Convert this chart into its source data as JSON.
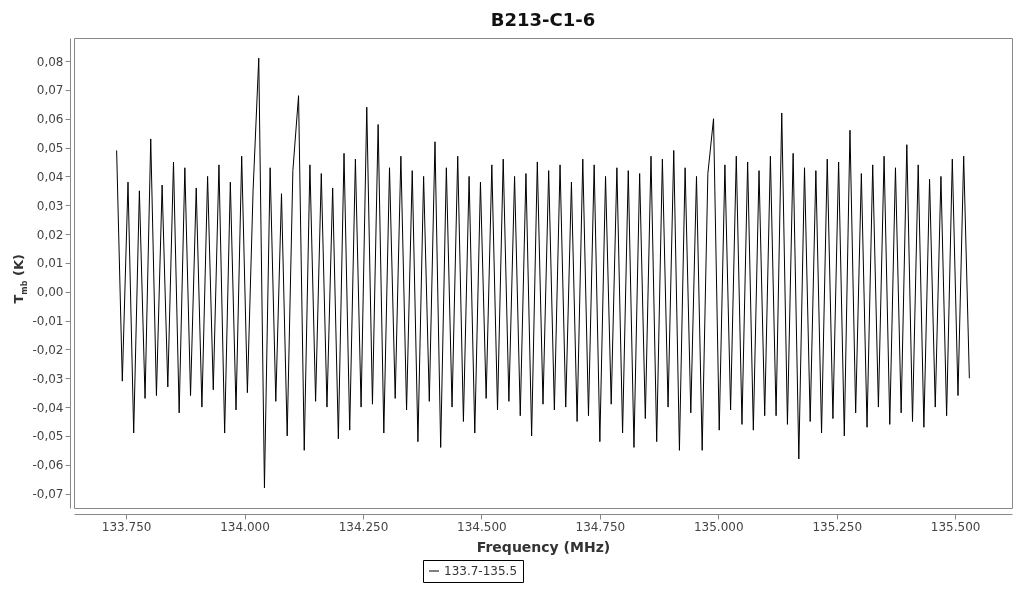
{
  "chart_data": {
    "type": "line",
    "title": "B213-C1-6",
    "xlabel": "Frequency (MHz)",
    "ylabel": "T$_{mb}$ (K)",
    "xlim": [
      133640,
      135620
    ],
    "ylim": [
      -0.075,
      0.088
    ],
    "xticks": [
      {
        "value": 133750,
        "label": "133.750"
      },
      {
        "value": 134000,
        "label": "134.000"
      },
      {
        "value": 134250,
        "label": "134.250"
      },
      {
        "value": 134500,
        "label": "134.500"
      },
      {
        "value": 134750,
        "label": "134.750"
      },
      {
        "value": 135000,
        "label": "135.000"
      },
      {
        "value": 135250,
        "label": "135.250"
      },
      {
        "value": 135500,
        "label": "135.500"
      }
    ],
    "yticks": [
      {
        "value": 0.08,
        "label": "0,08"
      },
      {
        "value": 0.07,
        "label": "0,07"
      },
      {
        "value": 0.06,
        "label": "0,06"
      },
      {
        "value": 0.05,
        "label": "0,05"
      },
      {
        "value": 0.04,
        "label": "0,04"
      },
      {
        "value": 0.03,
        "label": "0,03"
      },
      {
        "value": 0.02,
        "label": "0,02"
      },
      {
        "value": 0.01,
        "label": "0,01"
      },
      {
        "value": 0,
        "label": "0,00"
      },
      {
        "value": -0.01,
        "label": "-0,01"
      },
      {
        "value": -0.02,
        "label": "-0,02"
      },
      {
        "value": -0.03,
        "label": "-0,03"
      },
      {
        "value": -0.04,
        "label": "-0,04"
      },
      {
        "value": -0.05,
        "label": "-0,05"
      },
      {
        "value": -0.06,
        "label": "-0,06"
      },
      {
        "value": -0.07,
        "label": "-0,07"
      }
    ],
    "legend": "bottom",
    "grid": false,
    "line_style": "solid",
    "x": [
      133730,
      133742,
      133754,
      133766,
      133778,
      133790,
      133802,
      133814,
      133826,
      133838,
      133850,
      133862,
      133874,
      133886,
      133898,
      133910,
      133922,
      133934,
      133946,
      133958,
      133970,
      133982,
      133994,
      134006,
      134018,
      134030,
      134042,
      134054,
      134066,
      134078,
      134090,
      134102,
      134114,
      134126,
      134138,
      134150,
      134162,
      134174,
      134186,
      134198,
      134210,
      134222,
      134234,
      134246,
      134258,
      134270,
      134282,
      134294,
      134306,
      134318,
      134330,
      134342,
      134354,
      134366,
      134378,
      134390,
      134402,
      134414,
      134426,
      134438,
      134450,
      134462,
      134474,
      134486,
      134498,
      134510,
      134522,
      134534,
      134546,
      134558,
      134570,
      134582,
      134594,
      134606,
      134618,
      134630,
      134642,
      134654,
      134666,
      134678,
      134690,
      134702,
      134714,
      134726,
      134738,
      134750,
      134762,
      134774,
      134786,
      134798,
      134810,
      134822,
      134834,
      134846,
      134858,
      134870,
      134882,
      134894,
      134906,
      134918,
      134930,
      134942,
      134954,
      134966,
      134978,
      134990,
      135002,
      135014,
      135026,
      135038,
      135050,
      135062,
      135074,
      135086,
      135098,
      135110,
      135122,
      135134,
      135146,
      135158,
      135170,
      135182,
      135194,
      135206,
      135218,
      135230,
      135242,
      135254,
      135266,
      135278,
      135290,
      135302,
      135314,
      135326,
      135338,
      135350,
      135362,
      135374,
      135386,
      135398,
      135410,
      135422,
      135434,
      135446,
      135458,
      135470,
      135482,
      135494,
      135506,
      135518,
      135530
    ],
    "series": [
      {
        "name": "133.7-135.5",
        "color": "#000000",
        "values": [
          0.049,
          -0.031,
          0.038,
          -0.049,
          0.035,
          -0.037,
          0.053,
          -0.036,
          0.037,
          -0.033,
          0.045,
          -0.042,
          0.043,
          -0.036,
          0.036,
          -0.04,
          0.04,
          -0.034,
          0.044,
          -0.049,
          0.038,
          -0.041,
          0.047,
          -0.035,
          0.035,
          0.081,
          -0.068,
          0.043,
          -0.038,
          0.034,
          -0.05,
          0.042,
          0.068,
          -0.055,
          0.044,
          -0.038,
          0.041,
          -0.04,
          0.036,
          -0.051,
          0.048,
          -0.048,
          0.046,
          -0.04,
          0.064,
          -0.039,
          0.058,
          -0.049,
          0.043,
          -0.037,
          0.047,
          -0.041,
          0.042,
          -0.052,
          0.04,
          -0.038,
          0.052,
          -0.054,
          0.043,
          -0.04,
          0.047,
          -0.045,
          0.04,
          -0.049,
          0.038,
          -0.037,
          0.044,
          -0.041,
          0.046,
          -0.038,
          0.04,
          -0.043,
          0.041,
          -0.05,
          0.045,
          -0.039,
          0.042,
          -0.041,
          0.044,
          -0.04,
          0.038,
          -0.045,
          0.046,
          -0.043,
          0.044,
          -0.052,
          0.04,
          -0.039,
          0.043,
          -0.049,
          0.042,
          -0.054,
          0.041,
          -0.044,
          0.047,
          -0.052,
          0.046,
          -0.04,
          0.049,
          -0.055,
          0.043,
          -0.042,
          0.04,
          -0.055,
          0.041,
          0.06,
          -0.048,
          0.044,
          -0.041,
          0.047,
          -0.046,
          0.045,
          -0.048,
          0.042,
          -0.043,
          0.047,
          -0.043,
          0.062,
          -0.046,
          0.048,
          -0.058,
          0.043,
          -0.045,
          0.042,
          -0.049,
          0.046,
          -0.044,
          0.045,
          -0.05,
          0.056,
          -0.042,
          0.041,
          -0.047,
          0.044,
          -0.04,
          0.047,
          -0.046,
          0.043,
          -0.042,
          0.051,
          -0.045,
          0.044,
          -0.047,
          0.039,
          -0.04,
          0.04,
          -0.043,
          0.046,
          -0.036,
          0.047,
          -0.03
        ]
      }
    ]
  }
}
